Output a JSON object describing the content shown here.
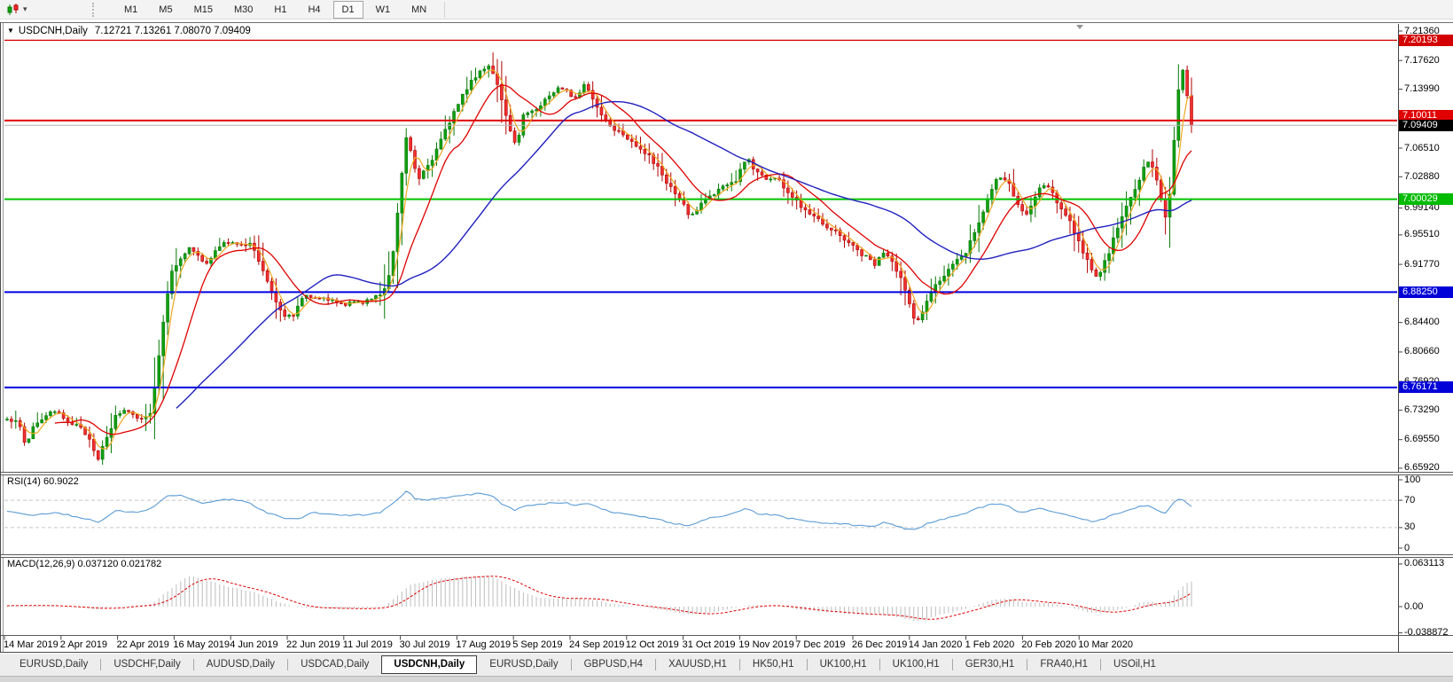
{
  "toolbar": {
    "timeframes": [
      "M1",
      "M5",
      "M15",
      "M30",
      "H1",
      "H4",
      "D1",
      "W1",
      "MN"
    ],
    "active_timeframe": "D1",
    "chart_type_icon": "candlestick-chart-icon",
    "dropdown_icon": "chevron-down-icon"
  },
  "chart": {
    "symbol_title": "USDCNH,Daily",
    "ohlc_text": "7.12721 7.13261 7.08070 7.09409",
    "collapse_arrow": "▼"
  },
  "price_scale": {
    "ticks": [
      "7.21360",
      "7.17620",
      "7.13990",
      "7.06510",
      "7.02880",
      "6.99140",
      "6.95510",
      "6.91770",
      "6.84400",
      "6.80660",
      "6.76920",
      "6.73290",
      "6.69550",
      "6.65920"
    ]
  },
  "levels": [
    {
      "label": "7.20193",
      "value": 7.20193,
      "line_color": "#d40000",
      "line_width": 1.2,
      "label_bg": "#d40000"
    },
    {
      "label": "7.10011",
      "value": 7.10011,
      "line_color": "#e00000",
      "line_width": 2,
      "label_bg": "#e00000"
    },
    {
      "label": "7.09409",
      "value": 7.09409,
      "line_color": "#b4b4b4",
      "line_width": 1,
      "label_bg": "#000000",
      "is_bid": true
    },
    {
      "label": "7.00029",
      "value": 7.00029,
      "line_color": "#00c400",
      "line_width": 2,
      "label_bg": "#00bb00"
    },
    {
      "label": "6.88250",
      "value": 6.8825,
      "line_color": "#0000e0",
      "line_width": 2,
      "label_bg": "#0000d8"
    },
    {
      "label": "6.76171",
      "value": 6.76171,
      "line_color": "#0000e0",
      "line_width": 2,
      "label_bg": "#0000d8"
    }
  ],
  "rsi_panel": {
    "label": "RSI(14) 60.9022",
    "scale_labels": [
      "100",
      "70",
      "30",
      "0"
    ],
    "dashed_levels": [
      70,
      30
    ],
    "current_value": 60.9022
  },
  "macd_panel": {
    "label": "MACD(12,26,9) 0.037120 0.021782",
    "scale_labels": [
      "0.063113",
      "0.00",
      "-0.038872"
    ],
    "macd_value": 0.03712,
    "signal_value": 0.021782
  },
  "time_scale": {
    "labels": [
      "14 Mar 2019",
      "2 Apr 2019",
      "22 Apr 2019",
      "16 May 2019",
      "4 Jun 2019",
      "22 Jun 2019",
      "11 Jul 2019",
      "30 Jul 2019",
      "17 Aug 2019",
      "5 Sep 2019",
      "24 Sep 2019",
      "12 Oct 2019",
      "31 Oct 2019",
      "19 Nov 2019",
      "7 Dec 2019",
      "26 Dec 2019",
      "14 Jan 2020",
      "1 Feb 2020",
      "20 Feb 2020",
      "10 Mar 2020"
    ]
  },
  "tabs": {
    "items": [
      "EURUSD,Daily",
      "USDCHF,Daily",
      "AUDUSD,Daily",
      "USDCAD,Daily",
      "USDCNH,Daily",
      "EURUSD,Daily",
      "GBPUSD,H4",
      "XAUUSD,H1",
      "HK50,H1",
      "UK100,H1",
      "UK100,H1",
      "GER30,H1",
      "FRA40,H1",
      "USOil,H1"
    ],
    "active_index": 4
  },
  "chart_data": {
    "type": "candlestick",
    "symbol": "USDCNH",
    "timeframe": "Daily",
    "ohlc_header": {
      "open": 7.12721,
      "high": 7.13261,
      "low": 7.0807,
      "close": 7.09409
    },
    "bid_price": 7.09409,
    "y_axis": {
      "min": 6.6592,
      "max": 7.2136
    },
    "horizontal_lines": [
      7.20193,
      7.10011,
      7.00029,
      6.8825,
      6.76171
    ],
    "indicators": [
      {
        "name": "RSI",
        "period": 14,
        "value": 60.9022,
        "levels": [
          30,
          70
        ]
      },
      {
        "name": "MACD",
        "fast": 12,
        "slow": 26,
        "signal_period": 9,
        "macd": 0.03712,
        "signal": 0.021782,
        "range": [
          -0.038872,
          0.063113
        ]
      }
    ],
    "colors": {
      "up_fill": "#10a010",
      "up_stroke": "#067806",
      "down_fill": "#f03030",
      "down_stroke": "#b00000",
      "ma_fast": "#efa720",
      "ma_mid": "#e00000",
      "ma_slow": "#2020c0",
      "rsi_line": "#5b9bd5",
      "rsi_level": "#c8c8c8",
      "macd_hist": "#bdbdbd",
      "macd_signal": "#e00000",
      "bid_line": "#b4b4b4",
      "axis_line": "#444444"
    },
    "price_path": [
      [
        5,
        6.718
      ],
      [
        18,
        6.723
      ],
      [
        28,
        6.686
      ],
      [
        36,
        6.712
      ],
      [
        48,
        6.724
      ],
      [
        60,
        6.73
      ],
      [
        72,
        6.723
      ],
      [
        85,
        6.713
      ],
      [
        98,
        6.701
      ],
      [
        110,
        6.672
      ],
      [
        120,
        6.698
      ],
      [
        130,
        6.726
      ],
      [
        140,
        6.734
      ],
      [
        152,
        6.726
      ],
      [
        162,
        6.722
      ],
      [
        170,
        6.734
      ],
      [
        178,
        6.8
      ],
      [
        186,
        6.872
      ],
      [
        194,
        6.912
      ],
      [
        202,
        6.926
      ],
      [
        212,
        6.938
      ],
      [
        222,
        6.928
      ],
      [
        232,
        6.918
      ],
      [
        242,
        6.934
      ],
      [
        252,
        6.944
      ],
      [
        262,
        6.948
      ],
      [
        272,
        6.94
      ],
      [
        282,
        6.944
      ],
      [
        292,
        6.92
      ],
      [
        302,
        6.894
      ],
      [
        312,
        6.868
      ],
      [
        322,
        6.85
      ],
      [
        332,
        6.856
      ],
      [
        342,
        6.88
      ],
      [
        356,
        6.877
      ],
      [
        372,
        6.871
      ],
      [
        388,
        6.867
      ],
      [
        404,
        6.87
      ],
      [
        418,
        6.873
      ],
      [
        430,
        6.881
      ],
      [
        440,
        6.912
      ],
      [
        447,
        6.978
      ],
      [
        453,
        7.042
      ],
      [
        458,
        7.086
      ],
      [
        464,
        7.054
      ],
      [
        471,
        7.026
      ],
      [
        479,
        7.041
      ],
      [
        489,
        7.056
      ],
      [
        499,
        7.081
      ],
      [
        509,
        7.106
      ],
      [
        519,
        7.131
      ],
      [
        529,
        7.146
      ],
      [
        539,
        7.161
      ],
      [
        549,
        7.172
      ],
      [
        557,
        7.158
      ],
      [
        565,
        7.124
      ],
      [
        573,
        7.09
      ],
      [
        581,
        7.068
      ],
      [
        589,
        7.106
      ],
      [
        597,
        7.112
      ],
      [
        607,
        7.118
      ],
      [
        617,
        7.13
      ],
      [
        627,
        7.14
      ],
      [
        637,
        7.142
      ],
      [
        647,
        7.128
      ],
      [
        657,
        7.145
      ],
      [
        667,
        7.13
      ],
      [
        677,
        7.108
      ],
      [
        689,
        7.092
      ],
      [
        701,
        7.085
      ],
      [
        715,
        7.071
      ],
      [
        729,
        7.057
      ],
      [
        743,
        7.037
      ],
      [
        756,
        7.014
      ],
      [
        769,
        6.994
      ],
      [
        779,
        6.977
      ],
      [
        791,
        6.997
      ],
      [
        803,
        7.007
      ],
      [
        816,
        7.017
      ],
      [
        829,
        7.023
      ],
      [
        841,
        7.054
      ],
      [
        851,
        7.037
      ],
      [
        863,
        7.027
      ],
      [
        876,
        7.027
      ],
      [
        889,
        7.007
      ],
      [
        903,
        6.991
      ],
      [
        917,
        6.981
      ],
      [
        931,
        6.967
      ],
      [
        945,
        6.957
      ],
      [
        959,
        6.943
      ],
      [
        973,
        6.929
      ],
      [
        986,
        6.919
      ],
      [
        997,
        6.933
      ],
      [
        1007,
        6.917
      ],
      [
        1016,
        6.897
      ],
      [
        1025,
        6.867
      ],
      [
        1033,
        6.842
      ],
      [
        1043,
        6.867
      ],
      [
        1053,
        6.889
      ],
      [
        1065,
        6.905
      ],
      [
        1077,
        6.919
      ],
      [
        1089,
        6.935
      ],
      [
        1099,
        6.963
      ],
      [
        1107,
        6.981
      ],
      [
        1115,
        7.005
      ],
      [
        1123,
        7.023
      ],
      [
        1131,
        7.029
      ],
      [
        1139,
        7.015
      ],
      [
        1147,
        6.993
      ],
      [
        1155,
        6.979
      ],
      [
        1163,
        6.993
      ],
      [
        1171,
        7.013
      ],
      [
        1179,
        7.019
      ],
      [
        1187,
        7.005
      ],
      [
        1195,
        6.991
      ],
      [
        1203,
        6.979
      ],
      [
        1211,
        6.959
      ],
      [
        1219,
        6.939
      ],
      [
        1227,
        6.917
      ],
      [
        1235,
        6.899
      ],
      [
        1243,
        6.915
      ],
      [
        1251,
        6.937
      ],
      [
        1259,
        6.961
      ],
      [
        1267,
        6.983
      ],
      [
        1275,
        7.003
      ],
      [
        1283,
        7.023
      ],
      [
        1291,
        7.043
      ],
      [
        1297,
        7.049
      ],
      [
        1303,
        7.029
      ],
      [
        1309,
        7.001
      ],
      [
        1314,
        6.976
      ],
      [
        1319,
        7.012
      ],
      [
        1324,
        7.082
      ],
      [
        1329,
        7.15
      ],
      [
        1334,
        7.166
      ],
      [
        1339,
        7.126
      ],
      [
        1343,
        7.094
      ]
    ],
    "rsi_path": [
      [
        5,
        55
      ],
      [
        30,
        48
      ],
      [
        60,
        52
      ],
      [
        90,
        45
      ],
      [
        112,
        38
      ],
      [
        130,
        55
      ],
      [
        150,
        52
      ],
      [
        170,
        58
      ],
      [
        185,
        75
      ],
      [
        200,
        78
      ],
      [
        215,
        72
      ],
      [
        230,
        65
      ],
      [
        245,
        70
      ],
      [
        262,
        72
      ],
      [
        280,
        66
      ],
      [
        300,
        52
      ],
      [
        320,
        44
      ],
      [
        335,
        42
      ],
      [
        350,
        52
      ],
      [
        370,
        50
      ],
      [
        390,
        48
      ],
      [
        410,
        49
      ],
      [
        428,
        52
      ],
      [
        446,
        70
      ],
      [
        458,
        84
      ],
      [
        468,
        72
      ],
      [
        480,
        70
      ],
      [
        495,
        73
      ],
      [
        510,
        76
      ],
      [
        525,
        78
      ],
      [
        540,
        80
      ],
      [
        552,
        78
      ],
      [
        565,
        65
      ],
      [
        580,
        55
      ],
      [
        592,
        62
      ],
      [
        605,
        63
      ],
      [
        620,
        66
      ],
      [
        635,
        67
      ],
      [
        650,
        62
      ],
      [
        662,
        66
      ],
      [
        676,
        58
      ],
      [
        690,
        52
      ],
      [
        705,
        50
      ],
      [
        720,
        47
      ],
      [
        740,
        42
      ],
      [
        760,
        36
      ],
      [
        778,
        32
      ],
      [
        792,
        42
      ],
      [
        808,
        46
      ],
      [
        825,
        50
      ],
      [
        840,
        58
      ],
      [
        855,
        50
      ],
      [
        870,
        49
      ],
      [
        888,
        44
      ],
      [
        905,
        40
      ],
      [
        925,
        37
      ],
      [
        945,
        36
      ],
      [
        965,
        33
      ],
      [
        985,
        31
      ],
      [
        996,
        38
      ],
      [
        1008,
        33
      ],
      [
        1020,
        28
      ],
      [
        1032,
        26
      ],
      [
        1045,
        36
      ],
      [
        1060,
        42
      ],
      [
        1075,
        46
      ],
      [
        1090,
        52
      ],
      [
        1102,
        58
      ],
      [
        1114,
        63
      ],
      [
        1126,
        65
      ],
      [
        1138,
        60
      ],
      [
        1150,
        52
      ],
      [
        1162,
        55
      ],
      [
        1174,
        58
      ],
      [
        1186,
        54
      ],
      [
        1198,
        50
      ],
      [
        1210,
        46
      ],
      [
        1222,
        42
      ],
      [
        1234,
        38
      ],
      [
        1246,
        44
      ],
      [
        1258,
        50
      ],
      [
        1270,
        55
      ],
      [
        1282,
        60
      ],
      [
        1294,
        63
      ],
      [
        1306,
        55
      ],
      [
        1314,
        50
      ],
      [
        1322,
        65
      ],
      [
        1330,
        74
      ],
      [
        1336,
        68
      ],
      [
        1343,
        61
      ]
    ],
    "macd_path": [
      [
        5,
        0.001
      ],
      [
        30,
        0.002
      ],
      [
        60,
        0.001
      ],
      [
        90,
        -0.002
      ],
      [
        112,
        -0.004
      ],
      [
        130,
        0.0
      ],
      [
        150,
        0.002
      ],
      [
        170,
        0.004
      ],
      [
        185,
        0.02
      ],
      [
        200,
        0.035
      ],
      [
        212,
        0.045
      ],
      [
        225,
        0.042
      ],
      [
        240,
        0.036
      ],
      [
        255,
        0.03
      ],
      [
        270,
        0.026
      ],
      [
        285,
        0.022
      ],
      [
        300,
        0.014
      ],
      [
        315,
        0.006
      ],
      [
        330,
        0.0
      ],
      [
        345,
        -0.002
      ],
      [
        360,
        -0.002
      ],
      [
        380,
        -0.003
      ],
      [
        400,
        -0.003
      ],
      [
        420,
        -0.002
      ],
      [
        435,
        0.002
      ],
      [
        450,
        0.02
      ],
      [
        462,
        0.032
      ],
      [
        475,
        0.036
      ],
      [
        490,
        0.04
      ],
      [
        505,
        0.042
      ],
      [
        520,
        0.044
      ],
      [
        535,
        0.045
      ],
      [
        550,
        0.046
      ],
      [
        562,
        0.04
      ],
      [
        575,
        0.03
      ],
      [
        588,
        0.022
      ],
      [
        600,
        0.016
      ],
      [
        615,
        0.012
      ],
      [
        630,
        0.012
      ],
      [
        645,
        0.012
      ],
      [
        660,
        0.012
      ],
      [
        675,
        0.008
      ],
      [
        690,
        0.004
      ],
      [
        705,
        0.002
      ],
      [
        720,
        0.0
      ],
      [
        740,
        -0.004
      ],
      [
        760,
        -0.008
      ],
      [
        778,
        -0.012
      ],
      [
        795,
        -0.01
      ],
      [
        812,
        -0.006
      ],
      [
        828,
        -0.002
      ],
      [
        842,
        0.002
      ],
      [
        858,
        0.002
      ],
      [
        874,
        0.0
      ],
      [
        890,
        -0.002
      ],
      [
        910,
        -0.006
      ],
      [
        930,
        -0.008
      ],
      [
        950,
        -0.01
      ],
      [
        970,
        -0.012
      ],
      [
        990,
        -0.012
      ],
      [
        1005,
        -0.014
      ],
      [
        1020,
        -0.018
      ],
      [
        1032,
        -0.022
      ],
      [
        1045,
        -0.018
      ],
      [
        1060,
        -0.012
      ],
      [
        1075,
        -0.008
      ],
      [
        1090,
        -0.002
      ],
      [
        1105,
        0.004
      ],
      [
        1118,
        0.01
      ],
      [
        1130,
        0.012
      ],
      [
        1142,
        0.01
      ],
      [
        1154,
        0.006
      ],
      [
        1166,
        0.006
      ],
      [
        1178,
        0.006
      ],
      [
        1190,
        0.004
      ],
      [
        1202,
        0.0
      ],
      [
        1214,
        -0.004
      ],
      [
        1226,
        -0.008
      ],
      [
        1238,
        -0.01
      ],
      [
        1250,
        -0.008
      ],
      [
        1262,
        -0.004
      ],
      [
        1274,
        0.0
      ],
      [
        1286,
        0.006
      ],
      [
        1298,
        0.008
      ],
      [
        1308,
        0.004
      ],
      [
        1318,
        0.008
      ],
      [
        1328,
        0.024
      ],
      [
        1336,
        0.034
      ],
      [
        1343,
        0.037
      ]
    ]
  }
}
